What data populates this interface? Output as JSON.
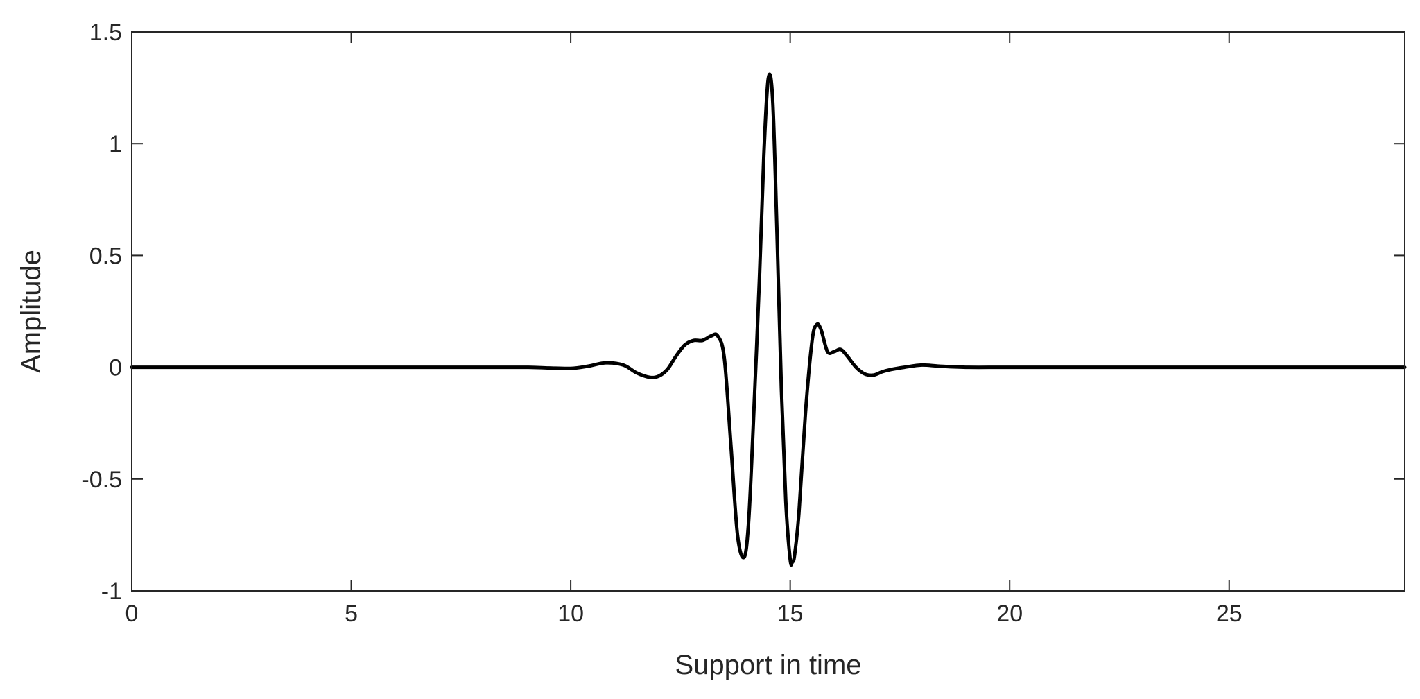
{
  "chart_data": {
    "type": "line",
    "title": "",
    "xlabel": "Support in time",
    "ylabel": "Amplitude",
    "xlim": [
      0,
      29
    ],
    "ylim": [
      -1,
      1.5
    ],
    "xticks": [
      0,
      5,
      10,
      15,
      20,
      25
    ],
    "yticks": [
      -1,
      -0.5,
      0,
      0.5,
      1,
      1.5
    ],
    "xtick_labels": [
      "0",
      "5",
      "10",
      "15",
      "20",
      "25"
    ],
    "ytick_labels": [
      "-1",
      "-0.5",
      "0",
      "0.5",
      "1",
      "1.5"
    ],
    "grid": false,
    "box": true,
    "series": [
      {
        "color": "#000000",
        "x": [
          0,
          2,
          4,
          6,
          8,
          9,
          9.5,
          10,
          10.4,
          10.8,
          11.2,
          11.5,
          11.8,
          12.0,
          12.2,
          12.4,
          12.6,
          12.8,
          13.0,
          13.2,
          13.35,
          13.5,
          13.65,
          13.8,
          13.95,
          14.05,
          14.15,
          14.3,
          14.4,
          14.5,
          14.6,
          14.7,
          14.8,
          14.9,
          15.0,
          15.05,
          15.1,
          15.2,
          15.35,
          15.5,
          15.6,
          15.7,
          15.85,
          16.0,
          16.15,
          16.3,
          16.5,
          16.7,
          16.9,
          17.1,
          17.3,
          17.6,
          18.0,
          18.4,
          19.0,
          20,
          22,
          25,
          29
        ],
        "values": [
          0,
          0,
          0,
          0,
          0,
          0,
          -0.003,
          -0.005,
          0.005,
          0.02,
          0.01,
          -0.025,
          -0.045,
          -0.04,
          -0.01,
          0.05,
          0.1,
          0.12,
          0.12,
          0.14,
          0.14,
          0.04,
          -0.35,
          -0.75,
          -0.85,
          -0.7,
          -0.3,
          0.4,
          0.95,
          1.29,
          1.2,
          0.6,
          -0.1,
          -0.6,
          -0.86,
          -0.87,
          -0.84,
          -0.65,
          -0.2,
          0.12,
          0.19,
          0.17,
          0.07,
          0.07,
          0.08,
          0.05,
          0.0,
          -0.03,
          -0.035,
          -0.02,
          -0.01,
          0.0,
          0.01,
          0.005,
          0,
          0,
          0,
          0,
          0
        ]
      }
    ]
  }
}
